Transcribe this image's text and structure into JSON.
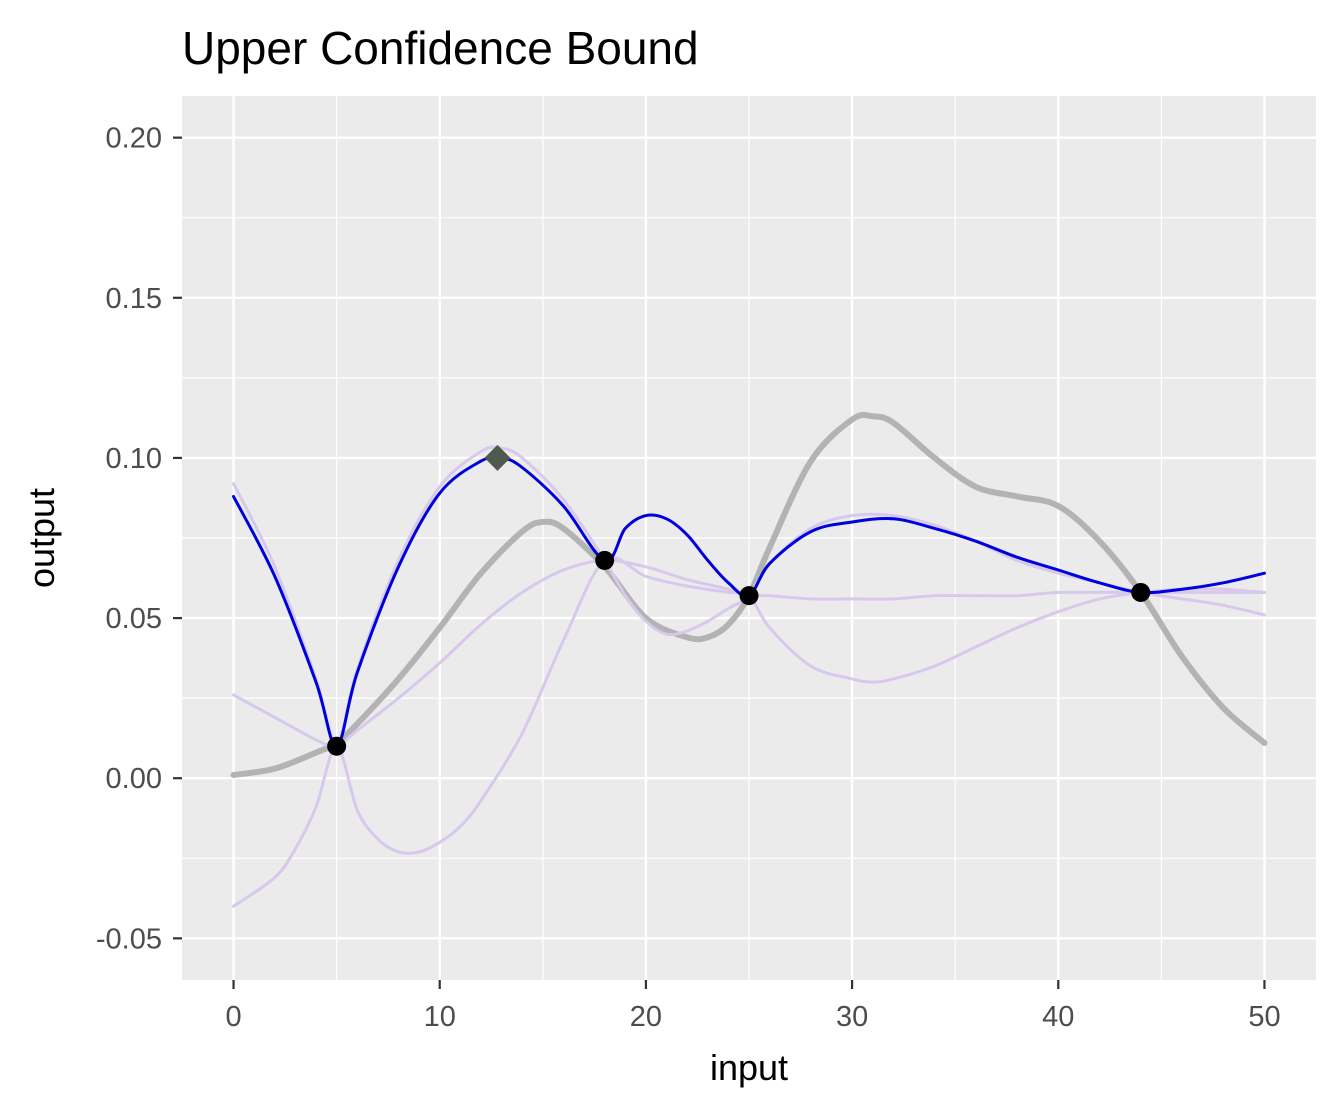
{
  "chart_data": {
    "type": "line",
    "title": "Upper Confidence Bound",
    "xlabel": "input",
    "ylabel": "output",
    "xlim": [
      -2.5,
      52.5
    ],
    "ylim": [
      -0.063,
      0.213
    ],
    "x_ticks": [
      0,
      10,
      20,
      30,
      40,
      50
    ],
    "x_tick_labels": [
      "0",
      "10",
      "20",
      "30",
      "40",
      "50"
    ],
    "y_ticks": [
      -0.05,
      0.0,
      0.05,
      0.1,
      0.15,
      0.2
    ],
    "y_tick_labels": [
      "-0.05",
      "0.00",
      "0.05",
      "0.10",
      "0.15",
      "0.20"
    ],
    "grid": true,
    "legend": "none",
    "series": [
      {
        "role": "true-function",
        "color": "#b3b3b3",
        "x": [
          0,
          2,
          4,
          5,
          6,
          8,
          10,
          12,
          14,
          15,
          16,
          18,
          20,
          22,
          23,
          24,
          25,
          26,
          28,
          30,
          31,
          32,
          34,
          36,
          38,
          40,
          42,
          44,
          46,
          48,
          50
        ],
        "y": [
          0.001,
          0.003,
          0.008,
          0.011,
          0.017,
          0.031,
          0.047,
          0.064,
          0.077,
          0.08,
          0.078,
          0.066,
          0.05,
          0.044,
          0.044,
          0.048,
          0.057,
          0.072,
          0.099,
          0.112,
          0.113,
          0.111,
          0.1,
          0.091,
          0.088,
          0.085,
          0.074,
          0.058,
          0.038,
          0.022,
          0.011
        ]
      },
      {
        "role": "upper-bound",
        "color": "#d8c8ec",
        "x": [
          0,
          2,
          4,
          5,
          6,
          8,
          10,
          12,
          13,
          14,
          16,
          18,
          19,
          20,
          21,
          22,
          23,
          24,
          25,
          26,
          28,
          30,
          32,
          34,
          36,
          38,
          40,
          42,
          44,
          46,
          48,
          50
        ],
        "y": [
          0.092,
          0.066,
          0.031,
          0.011,
          0.034,
          0.068,
          0.091,
          0.102,
          0.103,
          0.1,
          0.087,
          0.068,
          0.057,
          0.049,
          0.045,
          0.046,
          0.049,
          0.053,
          0.057,
          0.067,
          0.078,
          0.082,
          0.082,
          0.079,
          0.074,
          0.068,
          0.064,
          0.061,
          0.058,
          0.056,
          0.054,
          0.051
        ]
      },
      {
        "role": "mean",
        "color": "#d8c8ec",
        "x": [
          0,
          2,
          4,
          5,
          6,
          8,
          10,
          12,
          14,
          16,
          18,
          20,
          22,
          24,
          25,
          26,
          28,
          30,
          32,
          34,
          36,
          38,
          40,
          42,
          44,
          46,
          48,
          50
        ],
        "y": [
          0.026,
          0.019,
          0.012,
          0.01,
          0.015,
          0.025,
          0.036,
          0.048,
          0.058,
          0.065,
          0.068,
          0.066,
          0.062,
          0.059,
          0.057,
          0.057,
          0.056,
          0.056,
          0.056,
          0.057,
          0.057,
          0.057,
          0.058,
          0.058,
          0.058,
          0.058,
          0.058,
          0.058
        ]
      },
      {
        "role": "lower-bound",
        "color": "#d8c8ec",
        "x": [
          0,
          2,
          3,
          4,
          5,
          6,
          7,
          8,
          9,
          10,
          11,
          12,
          14,
          16,
          18,
          20,
          22,
          24,
          25,
          26,
          28,
          30,
          31,
          32,
          34,
          36,
          38,
          40,
          42,
          44,
          46,
          48,
          50
        ],
        "y": [
          -0.04,
          -0.031,
          -0.022,
          -0.009,
          0.01,
          -0.01,
          -0.019,
          -0.023,
          -0.023,
          -0.02,
          -0.015,
          -0.007,
          0.014,
          0.043,
          0.068,
          0.063,
          0.06,
          0.058,
          0.057,
          0.047,
          0.035,
          0.031,
          0.03,
          0.031,
          0.035,
          0.041,
          0.047,
          0.052,
          0.056,
          0.058,
          0.059,
          0.059,
          0.058
        ]
      },
      {
        "role": "ucb-acquisition",
        "color": "#0000dd",
        "x": [
          0,
          2,
          4,
          5,
          6,
          8,
          10,
          12,
          13,
          14,
          16,
          18,
          19,
          20,
          21,
          22,
          23,
          24,
          25,
          26,
          28,
          30,
          32,
          34,
          36,
          38,
          40,
          42,
          44,
          46,
          48,
          50
        ],
        "y": [
          0.088,
          0.063,
          0.03,
          0.01,
          0.033,
          0.066,
          0.089,
          0.099,
          0.1,
          0.097,
          0.085,
          0.068,
          0.078,
          0.082,
          0.081,
          0.076,
          0.068,
          0.061,
          0.057,
          0.067,
          0.077,
          0.08,
          0.081,
          0.078,
          0.074,
          0.069,
          0.065,
          0.061,
          0.058,
          0.059,
          0.061,
          0.064
        ]
      }
    ],
    "observations": {
      "color": "#000000",
      "x": [
        5,
        18,
        25,
        44
      ],
      "y": [
        0.01,
        0.068,
        0.057,
        0.058
      ]
    },
    "next_point": {
      "shape": "diamond",
      "color": "#4d5a4d",
      "x": 12.8,
      "y": 0.1
    }
  }
}
